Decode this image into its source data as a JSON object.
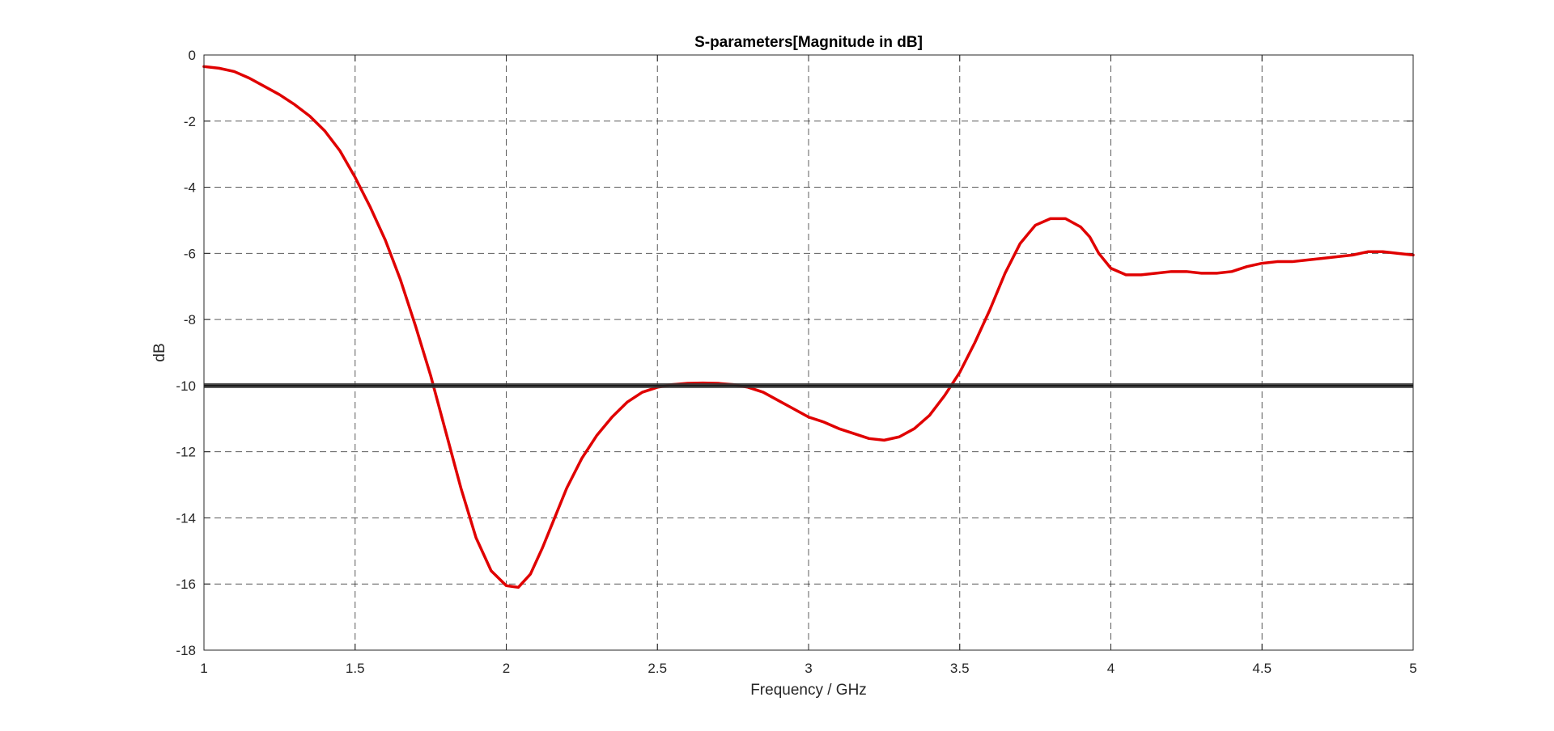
{
  "chart_data": {
    "type": "line",
    "title": "S-parameters[Magnitude in dB]",
    "xlabel": "Frequency / GHz",
    "ylabel": "dB",
    "xlim": [
      1,
      5
    ],
    "ylim": [
      -18,
      0
    ],
    "x_ticks": [
      "1",
      "1.5",
      "2",
      "2.5",
      "3",
      "3.5",
      "4",
      "4.5",
      "5"
    ],
    "y_ticks": [
      "0",
      "-2",
      "-4",
      "-6",
      "-8",
      "-10",
      "-12",
      "-14",
      "-16",
      "-18"
    ],
    "x_tick_values": [
      1,
      1.5,
      2,
      2.5,
      3,
      3.5,
      4,
      4.5,
      5
    ],
    "y_tick_values": [
      0,
      -2,
      -4,
      -6,
      -8,
      -10,
      -12,
      -14,
      -16,
      -18
    ],
    "grid": true,
    "grid_style": "dashed",
    "series": [
      {
        "color": "#e00000",
        "x": [
          1.0,
          1.05,
          1.1,
          1.15,
          1.2,
          1.25,
          1.3,
          1.35,
          1.4,
          1.45,
          1.5,
          1.55,
          1.6,
          1.65,
          1.7,
          1.75,
          1.8,
          1.85,
          1.9,
          1.95,
          2.0,
          2.04,
          2.08,
          2.12,
          2.16,
          2.2,
          2.25,
          2.3,
          2.35,
          2.4,
          2.45,
          2.5,
          2.55,
          2.6,
          2.65,
          2.7,
          2.75,
          2.8,
          2.85,
          2.9,
          2.95,
          3.0,
          3.05,
          3.1,
          3.15,
          3.2,
          3.25,
          3.3,
          3.35,
          3.4,
          3.45,
          3.5,
          3.55,
          3.6,
          3.65,
          3.7,
          3.75,
          3.8,
          3.85,
          3.9,
          3.93,
          3.96,
          4.0,
          4.05,
          4.1,
          4.15,
          4.2,
          4.25,
          4.3,
          4.35,
          4.4,
          4.45,
          4.5,
          4.55,
          4.6,
          4.65,
          4.7,
          4.75,
          4.8,
          4.85,
          4.9,
          4.95,
          5.0
        ],
        "y": [
          -0.35,
          -0.4,
          -0.5,
          -0.7,
          -0.95,
          -1.2,
          -1.5,
          -1.85,
          -2.3,
          -2.9,
          -3.7,
          -4.6,
          -5.6,
          -6.8,
          -8.2,
          -9.7,
          -11.4,
          -13.1,
          -14.6,
          -15.6,
          -16.05,
          -16.1,
          -15.7,
          -14.9,
          -14.0,
          -13.1,
          -12.2,
          -11.5,
          -10.95,
          -10.5,
          -10.2,
          -10.05,
          -9.97,
          -9.93,
          -9.92,
          -9.93,
          -9.97,
          -10.05,
          -10.2,
          -10.45,
          -10.7,
          -10.95,
          -11.1,
          -11.3,
          -11.45,
          -11.6,
          -11.65,
          -11.55,
          -11.3,
          -10.9,
          -10.3,
          -9.6,
          -8.7,
          -7.7,
          -6.6,
          -5.7,
          -5.15,
          -4.95,
          -4.95,
          -5.2,
          -5.5,
          -6.0,
          -6.45,
          -6.65,
          -6.65,
          -6.6,
          -6.55,
          -6.55,
          -6.6,
          -6.6,
          -6.55,
          -6.4,
          -6.3,
          -6.25,
          -6.25,
          -6.2,
          -6.15,
          -6.1,
          -6.05,
          -5.95,
          -5.95,
          -6.0,
          -6.05
        ]
      },
      {
        "color": "#3a3a3a",
        "x": [
          1,
          5
        ],
        "y": [
          -10,
          -10
        ]
      }
    ]
  }
}
